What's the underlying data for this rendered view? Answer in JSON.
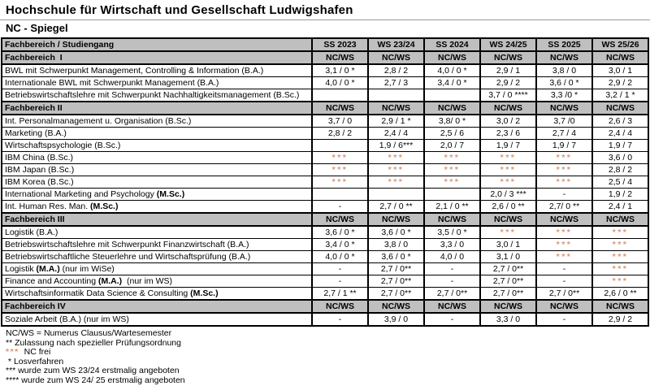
{
  "title": "Hochschule für Wirtschaft und Gesellschaft Ludwigshafen",
  "subtitle": "NC - Spiegel",
  "colors": {
    "header_bg": "#bfbfbf",
    "nc_frei": "#db9472",
    "border": "#000000"
  },
  "table": {
    "corner_header": "Fachbereich / Studiengang",
    "semester_headers": [
      "SS 2023",
      "WS 23/24",
      "SS 2024",
      "WS 24/25",
      "SS 2025",
      "WS 25/26"
    ],
    "nc_frei_marker": "***",
    "rows": [
      {
        "type": "section",
        "label": "Fachbereich  I",
        "cells": [
          "NC/WS",
          "NC/WS",
          "NC/WS",
          "NC/WS",
          "NC/WS",
          "NC/WS"
        ]
      },
      {
        "type": "data",
        "label": [
          "BWL mit Schwerpunkt Management, Controlling & Information (B.A.)",
          "",
          ""
        ],
        "cells": [
          "3,1 / 0 *",
          "2,8 / 2",
          "4,0 / 0 *",
          "2,9 / 1",
          "3,8 / 0",
          "3,0 / 1"
        ]
      },
      {
        "type": "data",
        "label": [
          "Internationale BWL mit Schwerpunkt Management (B.A.)",
          "",
          ""
        ],
        "cells": [
          "4,0 / 0 *",
          "2,7 / 3",
          "3,4 / 0 *",
          "2,9 / 2",
          "3,6 / 0 *",
          "2,9 / 2"
        ]
      },
      {
        "type": "data",
        "label": [
          "Betriebswirtschaftslehre mit Schwerpunkt Nachhaltigkeitsmanagement (B.Sc.)",
          "",
          ""
        ],
        "cells": [
          "",
          "",
          "",
          "3,7 / 0 ****",
          "3,3 /0 *",
          "3,2 / 1 *"
        ]
      },
      {
        "type": "section",
        "label": "Fachbereich II",
        "cells": [
          "NC/WS",
          "NC/WS",
          "NC/WS",
          "NC/WS",
          "NC/WS",
          "NC/WS"
        ]
      },
      {
        "type": "data",
        "label": [
          "Int. Personalmanagement u. Organisation (B.Sc.)",
          "",
          ""
        ],
        "cells": [
          "3,7 / 0",
          "2,9 / 1 *",
          "3,8/ 0 *",
          "3,0 / 2",
          "3,7 /0",
          "2,6 / 3"
        ]
      },
      {
        "type": "data",
        "label": [
          "Marketing (B.A.)",
          "",
          ""
        ],
        "cells": [
          "2,8 / 2",
          "2,4 / 4",
          "2,5 / 6",
          "2,3 / 6",
          "2,7 / 4",
          "2,4 / 4"
        ]
      },
      {
        "type": "data",
        "label": [
          "Wirtschaftspsychologie (B.Sc.)",
          "",
          ""
        ],
        "cells": [
          "",
          "1,9 / 6***",
          "2,0 / 7",
          "1,9 / 7",
          "1,9 / 7",
          "1,9 / 7"
        ]
      },
      {
        "type": "data",
        "label": [
          "IBM China (B.Sc.)",
          "",
          ""
        ],
        "cells": [
          "***",
          "***",
          "***",
          "***",
          "***",
          "3,6 / 0"
        ]
      },
      {
        "type": "data",
        "label": [
          "IBM Japan (B.Sc.)",
          "",
          ""
        ],
        "cells": [
          "***",
          "***",
          "***",
          "***",
          "***",
          "2,8 / 2"
        ]
      },
      {
        "type": "data",
        "label": [
          "IBM Korea (B.Sc.)",
          "",
          ""
        ],
        "cells": [
          "***",
          "***",
          "***",
          "***",
          "***",
          "2,5 / 4"
        ]
      },
      {
        "type": "data",
        "label": [
          "International Marketing and Psychology ",
          "(M.Sc.)",
          ""
        ],
        "cells": [
          "",
          "",
          "",
          "2,0 / 3 ***",
          "-",
          "1,9 / 2"
        ]
      },
      {
        "type": "data",
        "label": [
          "Int. Human Res. Man. ",
          "(M.Sc.)",
          ""
        ],
        "cells": [
          "-",
          "2,7 / 0 **",
          "2,1 / 0 **",
          "2,6 / 0 **",
          "2,7/ 0 **",
          "2,4 / 1"
        ]
      },
      {
        "type": "section",
        "label": "Fachbereich III",
        "cells": [
          "NC/WS",
          "NC/WS",
          "NC/WS",
          "NC/WS",
          "NC/WS",
          "NC/WS"
        ]
      },
      {
        "type": "data",
        "label": [
          "Logistik (B.A.)",
          "",
          ""
        ],
        "cells": [
          "3,6 / 0 *",
          "3,6 / 0 *",
          "3,5 / 0 *",
          "***",
          "***",
          "***"
        ]
      },
      {
        "type": "data",
        "label": [
          "Betriebswirtschaftslehre mit Schwerpunkt Finanzwirtschaft (B.A.)",
          "",
          ""
        ],
        "cells": [
          "3,4 / 0 *",
          "3,8 / 0",
          "3,3 / 0",
          "3,0 / 1",
          "***",
          "***"
        ]
      },
      {
        "type": "data",
        "label": [
          "Betriebswirtschaftliche Steuerlehre und Wirtschaftsprüfung (B.A.)",
          "",
          ""
        ],
        "cells": [
          "4,0 / 0 *",
          "3,6 / 0 *",
          "4,0 / 0",
          "3,1 / 0",
          "***",
          "***"
        ]
      },
      {
        "type": "data",
        "label": [
          "Logistik ",
          "(M.A.)",
          " (nur im WiSe)"
        ],
        "cells": [
          "-",
          "2,7 / 0**",
          "-",
          "2,7 / 0**",
          "-",
          "***"
        ]
      },
      {
        "type": "data",
        "label": [
          "Finance and Accounting ",
          "(M.A.)",
          "  (nur im WS)"
        ],
        "cells": [
          "-",
          "2,7 / 0**",
          "-",
          "2,7 / 0**",
          "-",
          "***"
        ]
      },
      {
        "type": "data",
        "label": [
          "Wirtschaftsinformatik Data Science & Consulting ",
          "(M.Sc.)",
          ""
        ],
        "cells": [
          "2,7 / 1 **",
          "2,7 / 0**",
          "2,7 / 0**",
          "2,7 / 0**",
          "2,7 / 0**",
          "2,6 / 0 **"
        ]
      },
      {
        "type": "section",
        "label": "Fachbereich IV",
        "cells": [
          "NC/WS",
          "NC/WS",
          "NC/WS",
          "NC/WS",
          "NC/WS",
          "NC/WS"
        ]
      },
      {
        "type": "data",
        "label": [
          "Soziale Arbeit (B.A.) (nur im WS)",
          "",
          ""
        ],
        "cells": [
          "-",
          "3,9 / 0",
          "-",
          "3,3 / 0",
          "-",
          "2,9 / 2"
        ]
      }
    ]
  },
  "footnotes": [
    {
      "marker": "",
      "orange": false,
      "text": "NC/WS = Numerus Clausus/Wartesemester"
    },
    {
      "marker": "**",
      "orange": false,
      "text": "Zulassung nach spezieller Prüfungsordnung"
    },
    {
      "marker": "***",
      "orange": true,
      "text": " NC frei"
    },
    {
      "marker": " *",
      "orange": false,
      "text": "Losverfahren"
    },
    {
      "marker": "***",
      "orange": false,
      "text": "wurde zum WS 23/24 erstmalig angeboten"
    },
    {
      "marker": "****",
      "orange": false,
      "text": "wurde zum WS 24/ 25 erstmalig angeboten"
    }
  ]
}
